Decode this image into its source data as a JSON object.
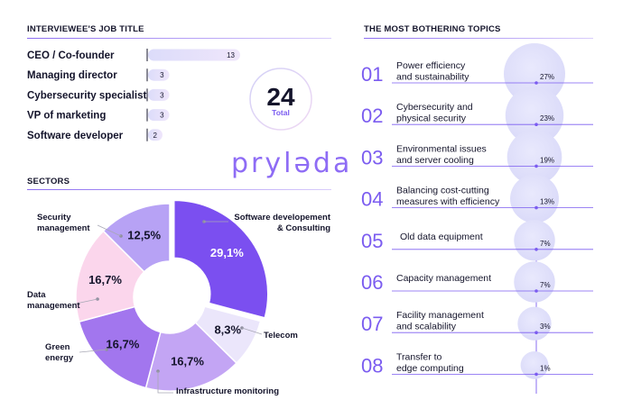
{
  "jobs_section": {
    "title": "INTERVIEWEE'S JOB TITLE",
    "total_value": "24",
    "total_label": "Total"
  },
  "sectors_section": {
    "title": "SECTORS"
  },
  "topics_section": {
    "title": "THE MOST BOTHERING TOPICS"
  },
  "logo": {
    "text": "pryləda"
  },
  "colors": {
    "accent": "#7b5cf0",
    "bar_start": "#dcdcfa",
    "bar_end": "#efe6fb",
    "bubble": "#e2e2fb"
  },
  "chart_data": [
    {
      "type": "bar",
      "orientation": "horizontal",
      "categories": [
        "CEO / Co-founder",
        "Managing director",
        "Cybersecurity specialist",
        "VP of marketing",
        "Software developer"
      ],
      "values": [
        13,
        3,
        3,
        3,
        2
      ]
    },
    {
      "type": "pie",
      "style": "donut",
      "categories": [
        "Software developement & Consulting",
        "Telecom",
        "Infrastructure monitoring",
        "Green energy",
        "Data management",
        "Security management"
      ],
      "values": [
        29.1,
        8.3,
        16.7,
        16.7,
        16.7,
        12.5
      ],
      "labels": [
        "29,1%",
        "8,3%",
        "16,7%",
        "16,7%",
        "16,7%",
        "12,5%"
      ],
      "callouts": [
        [
          "Software developement",
          "& Consulting"
        ],
        [
          "Telecom"
        ],
        [
          "Infrastructure monitoring"
        ],
        [
          "Green",
          "energy"
        ],
        [
          "Data",
          "management"
        ],
        [
          "Security",
          "management"
        ]
      ],
      "colors": [
        "#7b4ff0",
        "#ebe6fb",
        "#c3a5f4",
        "#a276ee",
        "#fbd6ec",
        "#b7a2f5"
      ]
    },
    {
      "type": "bubble",
      "ranks": [
        "01",
        "02",
        "03",
        "04",
        "05",
        "06",
        "07",
        "08"
      ],
      "categories": [
        [
          "Power efficiency",
          "and sustainability"
        ],
        [
          "Cybersecurity and",
          "physical security"
        ],
        [
          "Environmental issues",
          "and server cooling"
        ],
        [
          "Balancing cost-cutting",
          "measures with efficiency"
        ],
        [
          "Old data equipment"
        ],
        [
          "Capacity management"
        ],
        [
          "Facility management",
          "and scalability"
        ],
        [
          "Transfer to",
          "edge computing"
        ]
      ],
      "values": [
        27,
        23,
        19,
        13,
        7,
        7,
        3,
        1
      ],
      "labels": [
        "27%",
        "23%",
        "19%",
        "13%",
        "7%",
        "7%",
        "3%",
        "1%"
      ]
    }
  ]
}
